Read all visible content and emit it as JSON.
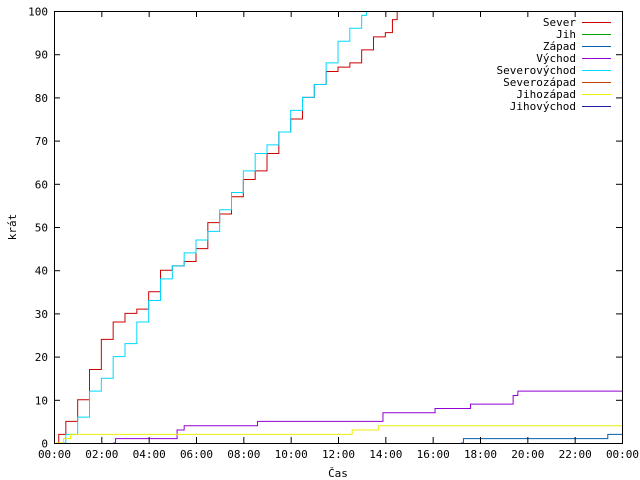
{
  "chart_data": {
    "type": "line",
    "xlabel": "Čas",
    "ylabel": "krát",
    "xlim": [
      0,
      24
    ],
    "ylim": [
      0,
      100
    ],
    "y_ticks": [
      0,
      10,
      20,
      30,
      40,
      50,
      60,
      70,
      80,
      90,
      100
    ],
    "x_ticks": [
      {
        "v": 0,
        "label": "00:00"
      },
      {
        "v": 2,
        "label": "02:00"
      },
      {
        "v": 4,
        "label": "04:00"
      },
      {
        "v": 6,
        "label": "06:00"
      },
      {
        "v": 8,
        "label": "08:00"
      },
      {
        "v": 10,
        "label": "10:00"
      },
      {
        "v": 12,
        "label": "12:00"
      },
      {
        "v": 14,
        "label": "14:00"
      },
      {
        "v": 16,
        "label": "16:00"
      },
      {
        "v": 18,
        "label": "18:00"
      },
      {
        "v": 20,
        "label": "20:00"
      },
      {
        "v": 22,
        "label": "22:00"
      },
      {
        "v": 24,
        "label": "00:00"
      }
    ],
    "grid": false,
    "legend": "top-right",
    "series": [
      {
        "name": "Sever",
        "color": "#cc0000",
        "points": [
          [
            0.1,
            0
          ],
          [
            0.2,
            2
          ],
          [
            0.5,
            5
          ],
          [
            1.0,
            10
          ],
          [
            1.5,
            17
          ],
          [
            2.0,
            24
          ],
          [
            2.5,
            28
          ],
          [
            3.0,
            30
          ],
          [
            3.5,
            31
          ],
          [
            4.0,
            35
          ],
          [
            4.5,
            40
          ],
          [
            5.0,
            41
          ],
          [
            5.5,
            42
          ],
          [
            6.0,
            45
          ],
          [
            6.5,
            51
          ],
          [
            7.0,
            53
          ],
          [
            7.5,
            57
          ],
          [
            8.0,
            61
          ],
          [
            8.5,
            63
          ],
          [
            9.0,
            67
          ],
          [
            9.5,
            72
          ],
          [
            10.0,
            75
          ],
          [
            10.5,
            80
          ],
          [
            11.0,
            83
          ],
          [
            11.5,
            86
          ],
          [
            12.0,
            87
          ],
          [
            12.5,
            88
          ],
          [
            13.0,
            91
          ],
          [
            13.5,
            94
          ],
          [
            14.0,
            95
          ],
          [
            14.3,
            98
          ],
          [
            14.5,
            100
          ]
        ]
      },
      {
        "name": "Jih",
        "color": "#00a000",
        "points": []
      },
      {
        "name": "Západ",
        "color": "#0060ad",
        "points": [
          [
            17.2,
            0
          ],
          [
            17.3,
            1
          ],
          [
            23.3,
            1
          ],
          [
            23.4,
            2
          ],
          [
            24.0,
            2
          ]
        ]
      },
      {
        "name": "Východ",
        "color": "#9400d3",
        "points": [
          [
            2.5,
            0
          ],
          [
            2.6,
            1
          ],
          [
            5.0,
            1
          ],
          [
            5.2,
            3
          ],
          [
            5.5,
            4
          ],
          [
            8.5,
            4
          ],
          [
            8.6,
            5
          ],
          [
            13.8,
            5
          ],
          [
            13.9,
            7
          ],
          [
            16.0,
            7
          ],
          [
            16.1,
            8
          ],
          [
            17.5,
            8
          ],
          [
            17.6,
            9
          ],
          [
            19.2,
            9
          ],
          [
            19.4,
            11
          ],
          [
            19.6,
            12
          ],
          [
            24.0,
            12
          ]
        ]
      },
      {
        "name": "Severovýchod",
        "color": "#00d8ff",
        "points": [
          [
            0.2,
            0
          ],
          [
            0.5,
            2
          ],
          [
            1.0,
            6
          ],
          [
            1.5,
            12
          ],
          [
            2.0,
            15
          ],
          [
            2.5,
            20
          ],
          [
            3.0,
            23
          ],
          [
            3.5,
            28
          ],
          [
            4.0,
            33
          ],
          [
            4.5,
            38
          ],
          [
            5.0,
            41
          ],
          [
            5.5,
            44
          ],
          [
            6.0,
            47
          ],
          [
            6.5,
            49
          ],
          [
            7.0,
            54
          ],
          [
            7.5,
            58
          ],
          [
            8.0,
            63
          ],
          [
            8.5,
            67
          ],
          [
            9.0,
            69
          ],
          [
            9.5,
            72
          ],
          [
            10.0,
            77
          ],
          [
            10.5,
            80
          ],
          [
            11.0,
            83
          ],
          [
            11.5,
            88
          ],
          [
            12.0,
            93
          ],
          [
            12.5,
            96
          ],
          [
            13.0,
            99
          ],
          [
            13.2,
            100
          ]
        ]
      },
      {
        "name": "Severozápad",
        "color": "#c04000",
        "points": []
      },
      {
        "name": "Jihozápad",
        "color": "#eeee00",
        "points": [
          [
            0.1,
            0
          ],
          [
            0.4,
            1
          ],
          [
            0.7,
            2
          ],
          [
            5.0,
            2
          ],
          [
            5.5,
            2
          ],
          [
            12.5,
            2
          ],
          [
            12.6,
            3
          ],
          [
            13.6,
            3
          ],
          [
            13.7,
            4
          ],
          [
            24.0,
            4
          ]
        ]
      },
      {
        "name": "Jihovýchod",
        "color": "#2020a0",
        "points": []
      }
    ]
  }
}
